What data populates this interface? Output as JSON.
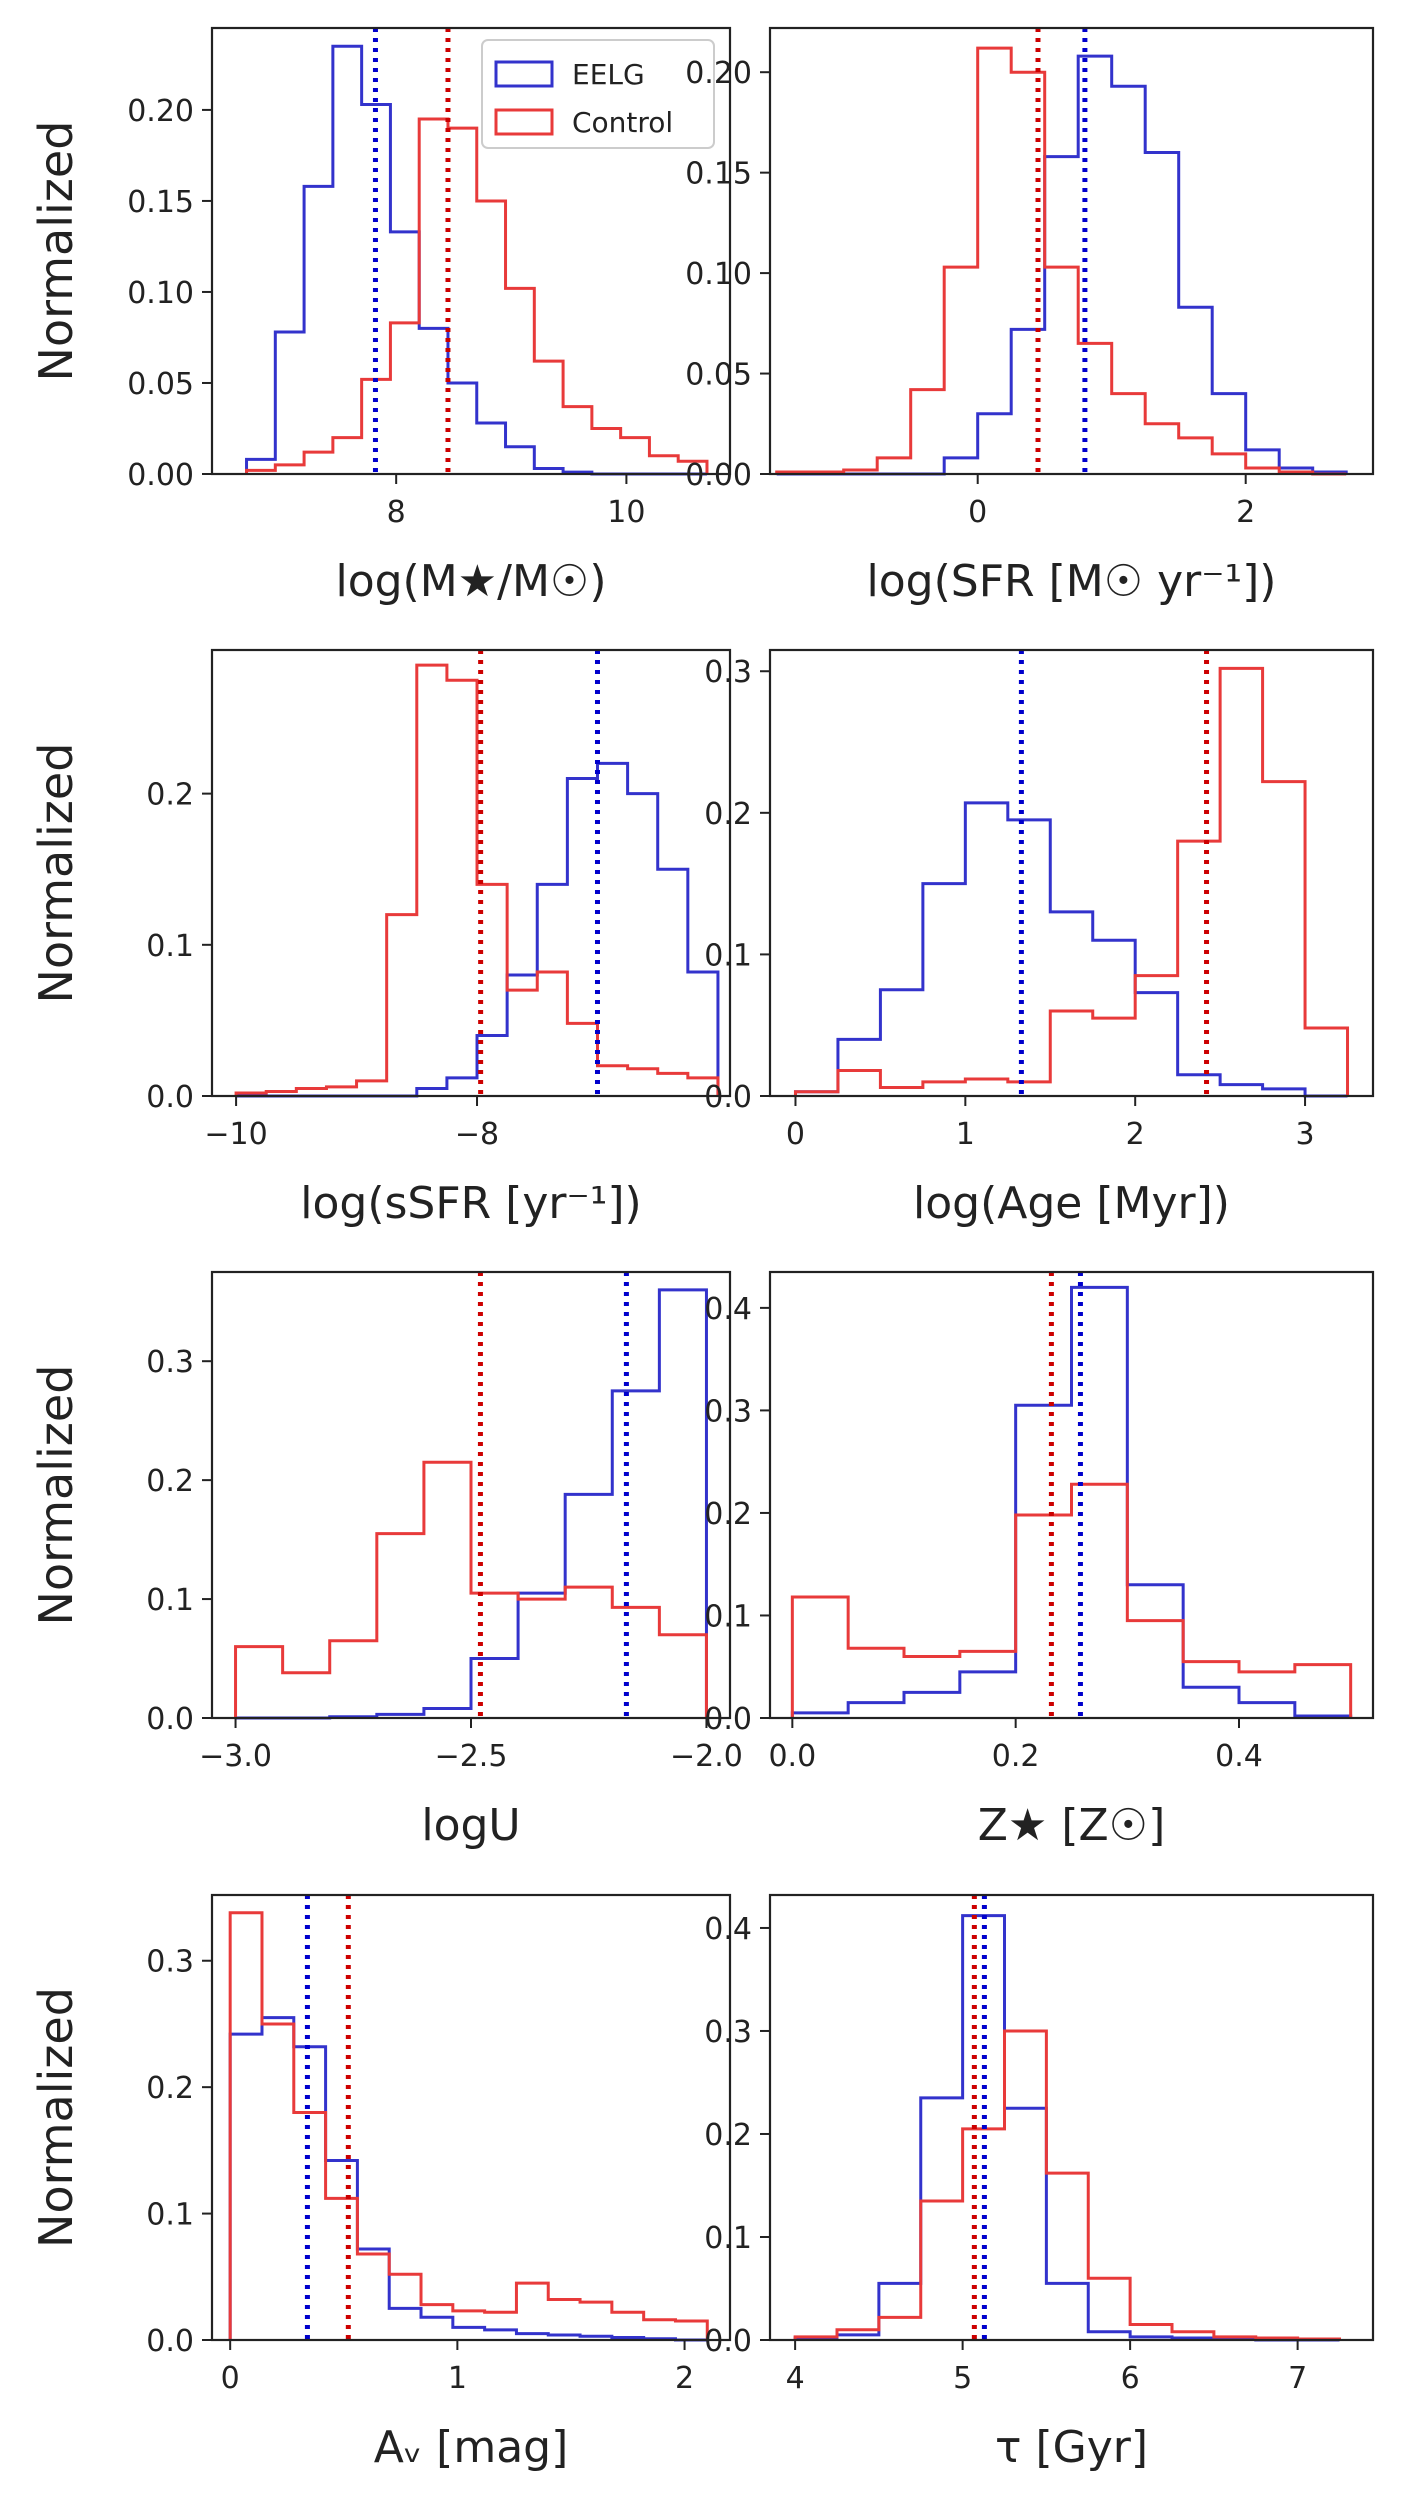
{
  "legend": {
    "entries": [
      {
        "name": "EELG",
        "color": "#3333cc"
      },
      {
        "name": "Control",
        "color": "#e83a3a"
      }
    ]
  },
  "colors": {
    "eelg": "#3333cc",
    "control": "#e83a3a",
    "eelg_median": "#0000cc",
    "control_median": "#cc0000"
  },
  "chart_data": [
    {
      "type": "bar",
      "id": "mass",
      "xlabel": "log(M★/M☉)",
      "ylabel": "Normalized",
      "xlim": [
        6.4,
        10.9
      ],
      "ylim": [
        0,
        0.245
      ],
      "xticks": [
        8,
        10
      ],
      "xtick_labels": [
        "8",
        "10"
      ],
      "yticks": [
        0,
        0.05,
        0.1,
        0.15,
        0.2
      ],
      "ytick_labels": [
        "0.00",
        "0.05",
        "0.10",
        "0.15",
        "0.20"
      ],
      "edges": [
        6.7,
        6.95,
        7.2,
        7.45,
        7.7,
        7.95,
        8.2,
        8.45,
        8.7,
        8.95,
        9.2,
        9.45,
        9.7,
        9.95,
        10.2,
        10.45,
        10.7
      ],
      "series": [
        {
          "name": "EELG",
          "values": [
            0.008,
            0.078,
            0.158,
            0.235,
            0.203,
            0.133,
            0.08,
            0.05,
            0.028,
            0.015,
            0.003,
            0.001,
            0.0,
            0.0,
            0.0,
            0.0
          ]
        },
        {
          "name": "Control",
          "values": [
            0.002,
            0.005,
            0.012,
            0.02,
            0.052,
            0.083,
            0.195,
            0.19,
            0.15,
            0.102,
            0.062,
            0.037,
            0.025,
            0.02,
            0.01,
            0.007
          ]
        }
      ],
      "medians": {
        "EELG": 7.82,
        "Control": 8.45
      },
      "legend": true
    },
    {
      "type": "bar",
      "id": "sfr",
      "xlabel": "log(SFR [M☉ yr⁻¹])",
      "ylabel": "",
      "xlim": [
        -1.55,
        2.95
      ],
      "ylim": [
        0,
        0.222
      ],
      "xticks": [
        0,
        2
      ],
      "xtick_labels": [
        "0",
        "2"
      ],
      "yticks": [
        0,
        0.05,
        0.1,
        0.15,
        0.2
      ],
      "ytick_labels": [
        "0.00",
        "0.05",
        "0.10",
        "0.15",
        "0.20"
      ],
      "edges": [
        -1.5,
        -1.25,
        -1.0,
        -0.75,
        -0.5,
        -0.25,
        0.0,
        0.25,
        0.5,
        0.75,
        1.0,
        1.25,
        1.5,
        1.75,
        2.0,
        2.25,
        2.5,
        2.75
      ],
      "series": [
        {
          "name": "EELG",
          "values": [
            0.0,
            0.0,
            0.0,
            0.0,
            0.0,
            0.008,
            0.03,
            0.072,
            0.158,
            0.208,
            0.193,
            0.16,
            0.083,
            0.04,
            0.012,
            0.003,
            0.001
          ]
        },
        {
          "name": "Control",
          "values": [
            0.001,
            0.001,
            0.002,
            0.008,
            0.042,
            0.103,
            0.212,
            0.2,
            0.103,
            0.065,
            0.04,
            0.025,
            0.018,
            0.01,
            0.003,
            0.001,
            0.0
          ]
        }
      ],
      "medians": {
        "EELG": 0.8,
        "Control": 0.45
      },
      "legend": false
    },
    {
      "type": "bar",
      "id": "ssfr",
      "xlabel": "log(sSFR [yr⁻¹])",
      "ylabel": "Normalized",
      "xlim": [
        -10.2,
        -5.9
      ],
      "ylim": [
        0,
        0.295
      ],
      "xticks": [
        -10,
        -8
      ],
      "xtick_labels": [
        "−10",
        "−8"
      ],
      "yticks": [
        0,
        0.1,
        0.2
      ],
      "ytick_labels": [
        "0.0",
        "0.1",
        "0.2"
      ],
      "edges": [
        -10.0,
        -9.75,
        -9.5,
        -9.25,
        -9.0,
        -8.75,
        -8.5,
        -8.25,
        -8.0,
        -7.75,
        -7.5,
        -7.25,
        -7.0,
        -6.75,
        -6.5,
        -6.25,
        -6.0
      ],
      "series": [
        {
          "name": "EELG",
          "values": [
            0.0,
            0.0,
            0.0,
            0.0,
            0.0,
            0.0,
            0.005,
            0.012,
            0.04,
            0.08,
            0.14,
            0.21,
            0.22,
            0.2,
            0.15,
            0.082
          ]
        },
        {
          "name": "Control",
          "values": [
            0.002,
            0.003,
            0.005,
            0.006,
            0.01,
            0.12,
            0.285,
            0.275,
            0.14,
            0.07,
            0.082,
            0.048,
            0.02,
            0.018,
            0.015,
            0.012
          ]
        }
      ],
      "medians": {
        "EELG": -7.0,
        "Control": -7.97
      },
      "legend": false
    },
    {
      "type": "bar",
      "id": "age",
      "xlabel": "log(Age [Myr])",
      "ylabel": "",
      "xlim": [
        -0.15,
        3.4
      ],
      "ylim": [
        0,
        0.315
      ],
      "xticks": [
        0,
        1,
        2,
        3
      ],
      "xtick_labels": [
        "0",
        "1",
        "2",
        "3"
      ],
      "yticks": [
        0,
        0.1,
        0.2,
        0.3
      ],
      "ytick_labels": [
        "0.0",
        "0.1",
        "0.2",
        "0.3"
      ],
      "edges": [
        0.0,
        0.25,
        0.5,
        0.75,
        1.0,
        1.25,
        1.5,
        1.75,
        2.0,
        2.25,
        2.5,
        2.75,
        3.0,
        3.25
      ],
      "series": [
        {
          "name": "EELG",
          "values": [
            0.003,
            0.04,
            0.075,
            0.15,
            0.207,
            0.195,
            0.13,
            0.11,
            0.073,
            0.015,
            0.008,
            0.005,
            0.0
          ]
        },
        {
          "name": "Control",
          "values": [
            0.003,
            0.018,
            0.006,
            0.01,
            0.012,
            0.01,
            0.06,
            0.055,
            0.085,
            0.18,
            0.302,
            0.222,
            0.048
          ]
        }
      ],
      "medians": {
        "EELG": 1.33,
        "Control": 2.42
      },
      "legend": false
    },
    {
      "type": "bar",
      "id": "logu",
      "xlabel": "logU",
      "ylabel": "Normalized",
      "xlim": [
        -3.05,
        -1.95
      ],
      "ylim": [
        0,
        0.375
      ],
      "xticks": [
        -3.0,
        -2.5,
        -2.0
      ],
      "xtick_labels": [
        "−3.0",
        "−2.5",
        "−2.0"
      ],
      "yticks": [
        0,
        0.1,
        0.2,
        0.3
      ],
      "ytick_labels": [
        "0.0",
        "0.1",
        "0.2",
        "0.3"
      ],
      "edges": [
        -3.0,
        -2.9,
        -2.8,
        -2.7,
        -2.6,
        -2.5,
        -2.4,
        -2.3,
        -2.2,
        -2.1,
        -2.0
      ],
      "series": [
        {
          "name": "EELG",
          "values": [
            0.0,
            0.0,
            0.001,
            0.003,
            0.008,
            0.05,
            0.105,
            0.188,
            0.275,
            0.36
          ]
        },
        {
          "name": "Control",
          "values": [
            0.06,
            0.038,
            0.065,
            0.155,
            0.215,
            0.105,
            0.1,
            0.11,
            0.093,
            0.07
          ]
        }
      ],
      "medians": {
        "EELG": -2.17,
        "Control": -2.48
      },
      "legend": false
    },
    {
      "type": "bar",
      "id": "metal",
      "xlabel": "Z★ [Z☉]",
      "ylabel": "",
      "xlim": [
        -0.02,
        0.52
      ],
      "ylim": [
        0,
        0.435
      ],
      "xticks": [
        0.0,
        0.2,
        0.4
      ],
      "xtick_labels": [
        "0.0",
        "0.2",
        "0.4"
      ],
      "yticks": [
        0,
        0.1,
        0.2,
        0.3,
        0.4
      ],
      "ytick_labels": [
        "0.0",
        "0.1",
        "0.2",
        "0.3",
        "0.4"
      ],
      "edges": [
        0.0,
        0.05,
        0.1,
        0.15,
        0.2,
        0.25,
        0.3,
        0.35,
        0.4,
        0.45,
        0.5
      ],
      "series": [
        {
          "name": "EELG",
          "values": [
            0.005,
            0.015,
            0.025,
            0.045,
            0.305,
            0.42,
            0.13,
            0.03,
            0.015,
            0.002
          ]
        },
        {
          "name": "Control",
          "values": [
            0.118,
            0.068,
            0.06,
            0.065,
            0.198,
            0.228,
            0.095,
            0.055,
            0.045,
            0.052
          ]
        }
      ],
      "medians": {
        "EELG": 0.258,
        "Control": 0.232
      },
      "legend": false
    },
    {
      "type": "bar",
      "id": "av",
      "xlabel": "Aᵥ [mag]",
      "ylabel": "Normalized",
      "xlim": [
        -0.08,
        2.2
      ],
      "ylim": [
        0,
        0.352
      ],
      "xticks": [
        0,
        1,
        2
      ],
      "xtick_labels": [
        "0",
        "1",
        "2"
      ],
      "yticks": [
        0,
        0.1,
        0.2,
        0.3
      ],
      "ytick_labels": [
        "0.0",
        "0.1",
        "0.2",
        "0.3"
      ],
      "edges": [
        0.0,
        0.14,
        0.28,
        0.42,
        0.56,
        0.7,
        0.84,
        0.98,
        1.12,
        1.26,
        1.4,
        1.54,
        1.68,
        1.82,
        1.96,
        2.1
      ],
      "series": [
        {
          "name": "EELG",
          "values": [
            0.242,
            0.255,
            0.232,
            0.142,
            0.072,
            0.025,
            0.018,
            0.01,
            0.008,
            0.005,
            0.004,
            0.003,
            0.002,
            0.001,
            0.0
          ]
        },
        {
          "name": "Control",
          "values": [
            0.338,
            0.25,
            0.18,
            0.112,
            0.068,
            0.052,
            0.028,
            0.023,
            0.022,
            0.045,
            0.032,
            0.03,
            0.022,
            0.016,
            0.015
          ]
        }
      ],
      "medians": {
        "EELG": 0.34,
        "Control": 0.52
      },
      "legend": false
    },
    {
      "type": "bar",
      "id": "tau",
      "xlabel": "τ [Gyr]",
      "ylabel": "",
      "xlim": [
        3.85,
        7.45
      ],
      "ylim": [
        0,
        0.432
      ],
      "xticks": [
        4,
        5,
        6,
        7
      ],
      "xtick_labels": [
        "4",
        "5",
        "6",
        "7"
      ],
      "yticks": [
        0,
        0.1,
        0.2,
        0.3,
        0.4
      ],
      "ytick_labels": [
        "0.0",
        "0.1",
        "0.2",
        "0.3",
        "0.4"
      ],
      "edges": [
        4.0,
        4.25,
        4.5,
        4.75,
        5.0,
        5.25,
        5.5,
        5.75,
        6.0,
        6.25,
        6.5,
        6.75,
        7.0,
        7.25
      ],
      "series": [
        {
          "name": "EELG",
          "values": [
            0.002,
            0.005,
            0.055,
            0.235,
            0.412,
            0.225,
            0.055,
            0.008,
            0.003,
            0.002,
            0.001,
            0.0,
            0.0
          ]
        },
        {
          "name": "Control",
          "values": [
            0.003,
            0.01,
            0.022,
            0.135,
            0.205,
            0.3,
            0.162,
            0.06,
            0.015,
            0.008,
            0.003,
            0.002,
            0.001
          ]
        }
      ],
      "medians": {
        "EELG": 5.13,
        "Control": 5.07
      },
      "legend": false
    }
  ]
}
